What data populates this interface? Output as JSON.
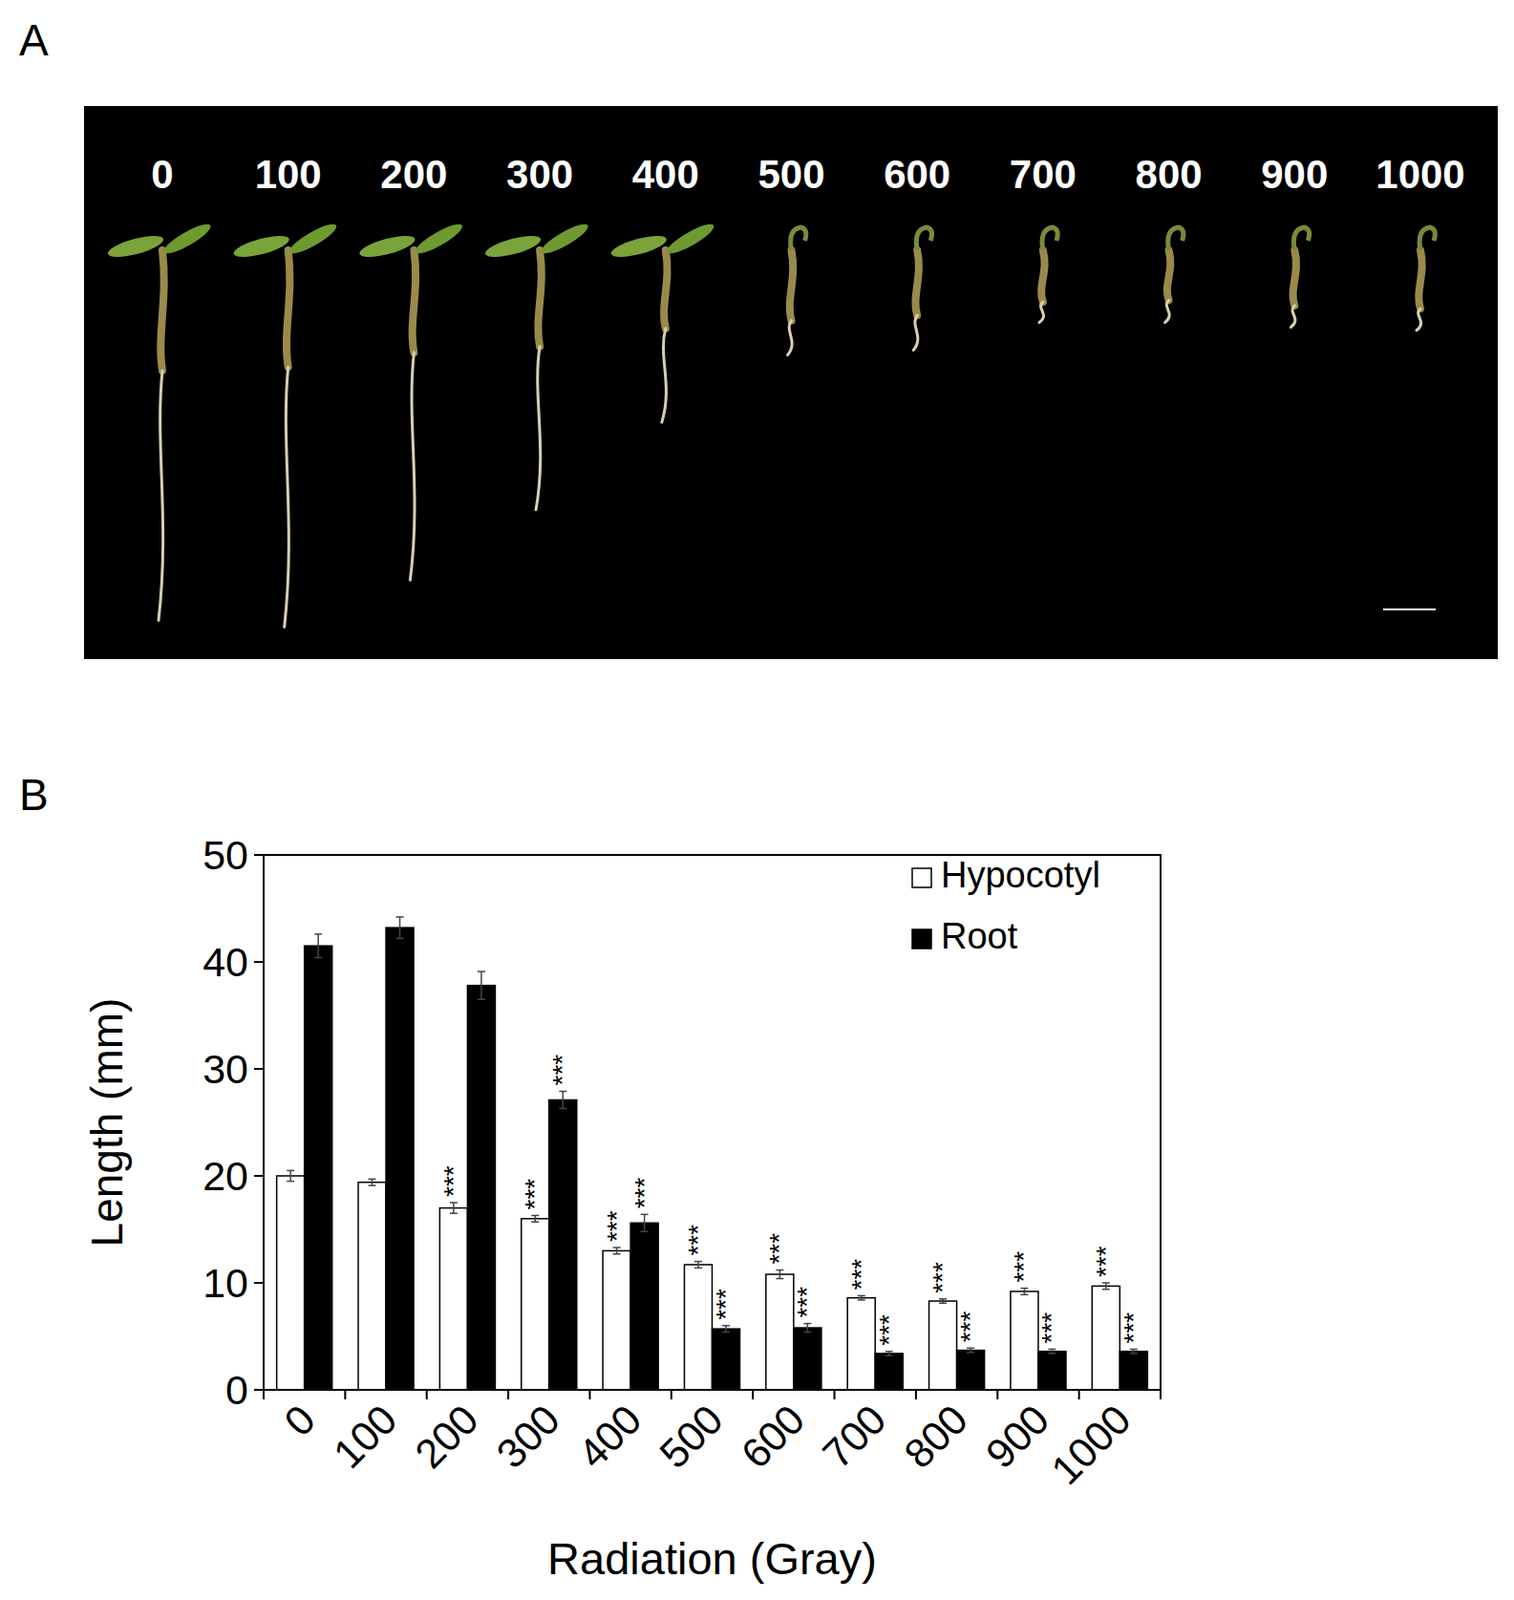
{
  "figure": {
    "panel_labels": [
      "A",
      "B"
    ],
    "photo_labels": [
      "0",
      "100",
      "200",
      "300",
      "400",
      "500",
      "600",
      "700",
      "800",
      "900",
      "1000"
    ]
  },
  "chart_data": {
    "type": "bar",
    "categories": [
      "0",
      "100",
      "200",
      "300",
      "400",
      "500",
      "600",
      "700",
      "800",
      "900",
      "1000"
    ],
    "x_label": "Radiation (Gray)",
    "y_label": "Length (mm)",
    "ylim": [
      0,
      50
    ],
    "yticks": [
      0,
      10,
      20,
      30,
      40,
      50
    ],
    "legend": "upper right",
    "series": [
      {
        "name": "Hypocotyl",
        "color": "#ffffff",
        "values": [
          20,
          19.4,
          17,
          16,
          13,
          11.7,
          10.8,
          8.6,
          8.3,
          9.2,
          9.7
        ],
        "errors": [
          0.5,
          0.3,
          0.5,
          0.3,
          0.3,
          0.3,
          0.4,
          0.2,
          0.2,
          0.3,
          0.3
        ],
        "annotations": [
          null,
          null,
          "***",
          "***",
          "***",
          "***",
          "***",
          "***",
          "***",
          "***",
          "***"
        ]
      },
      {
        "name": "Root",
        "color": "#000000",
        "values": [
          41.5,
          43.2,
          37.8,
          27.1,
          15.6,
          5.7,
          5.8,
          3.4,
          3.7,
          3.6,
          3.6
        ],
        "errors": [
          1.1,
          1.0,
          1.3,
          0.8,
          0.8,
          0.3,
          0.4,
          0.2,
          0.2,
          0.2,
          0.2
        ],
        "annotations": [
          null,
          null,
          null,
          "***",
          "***",
          "***",
          "***",
          "***",
          "***",
          "***",
          "***"
        ]
      }
    ]
  }
}
